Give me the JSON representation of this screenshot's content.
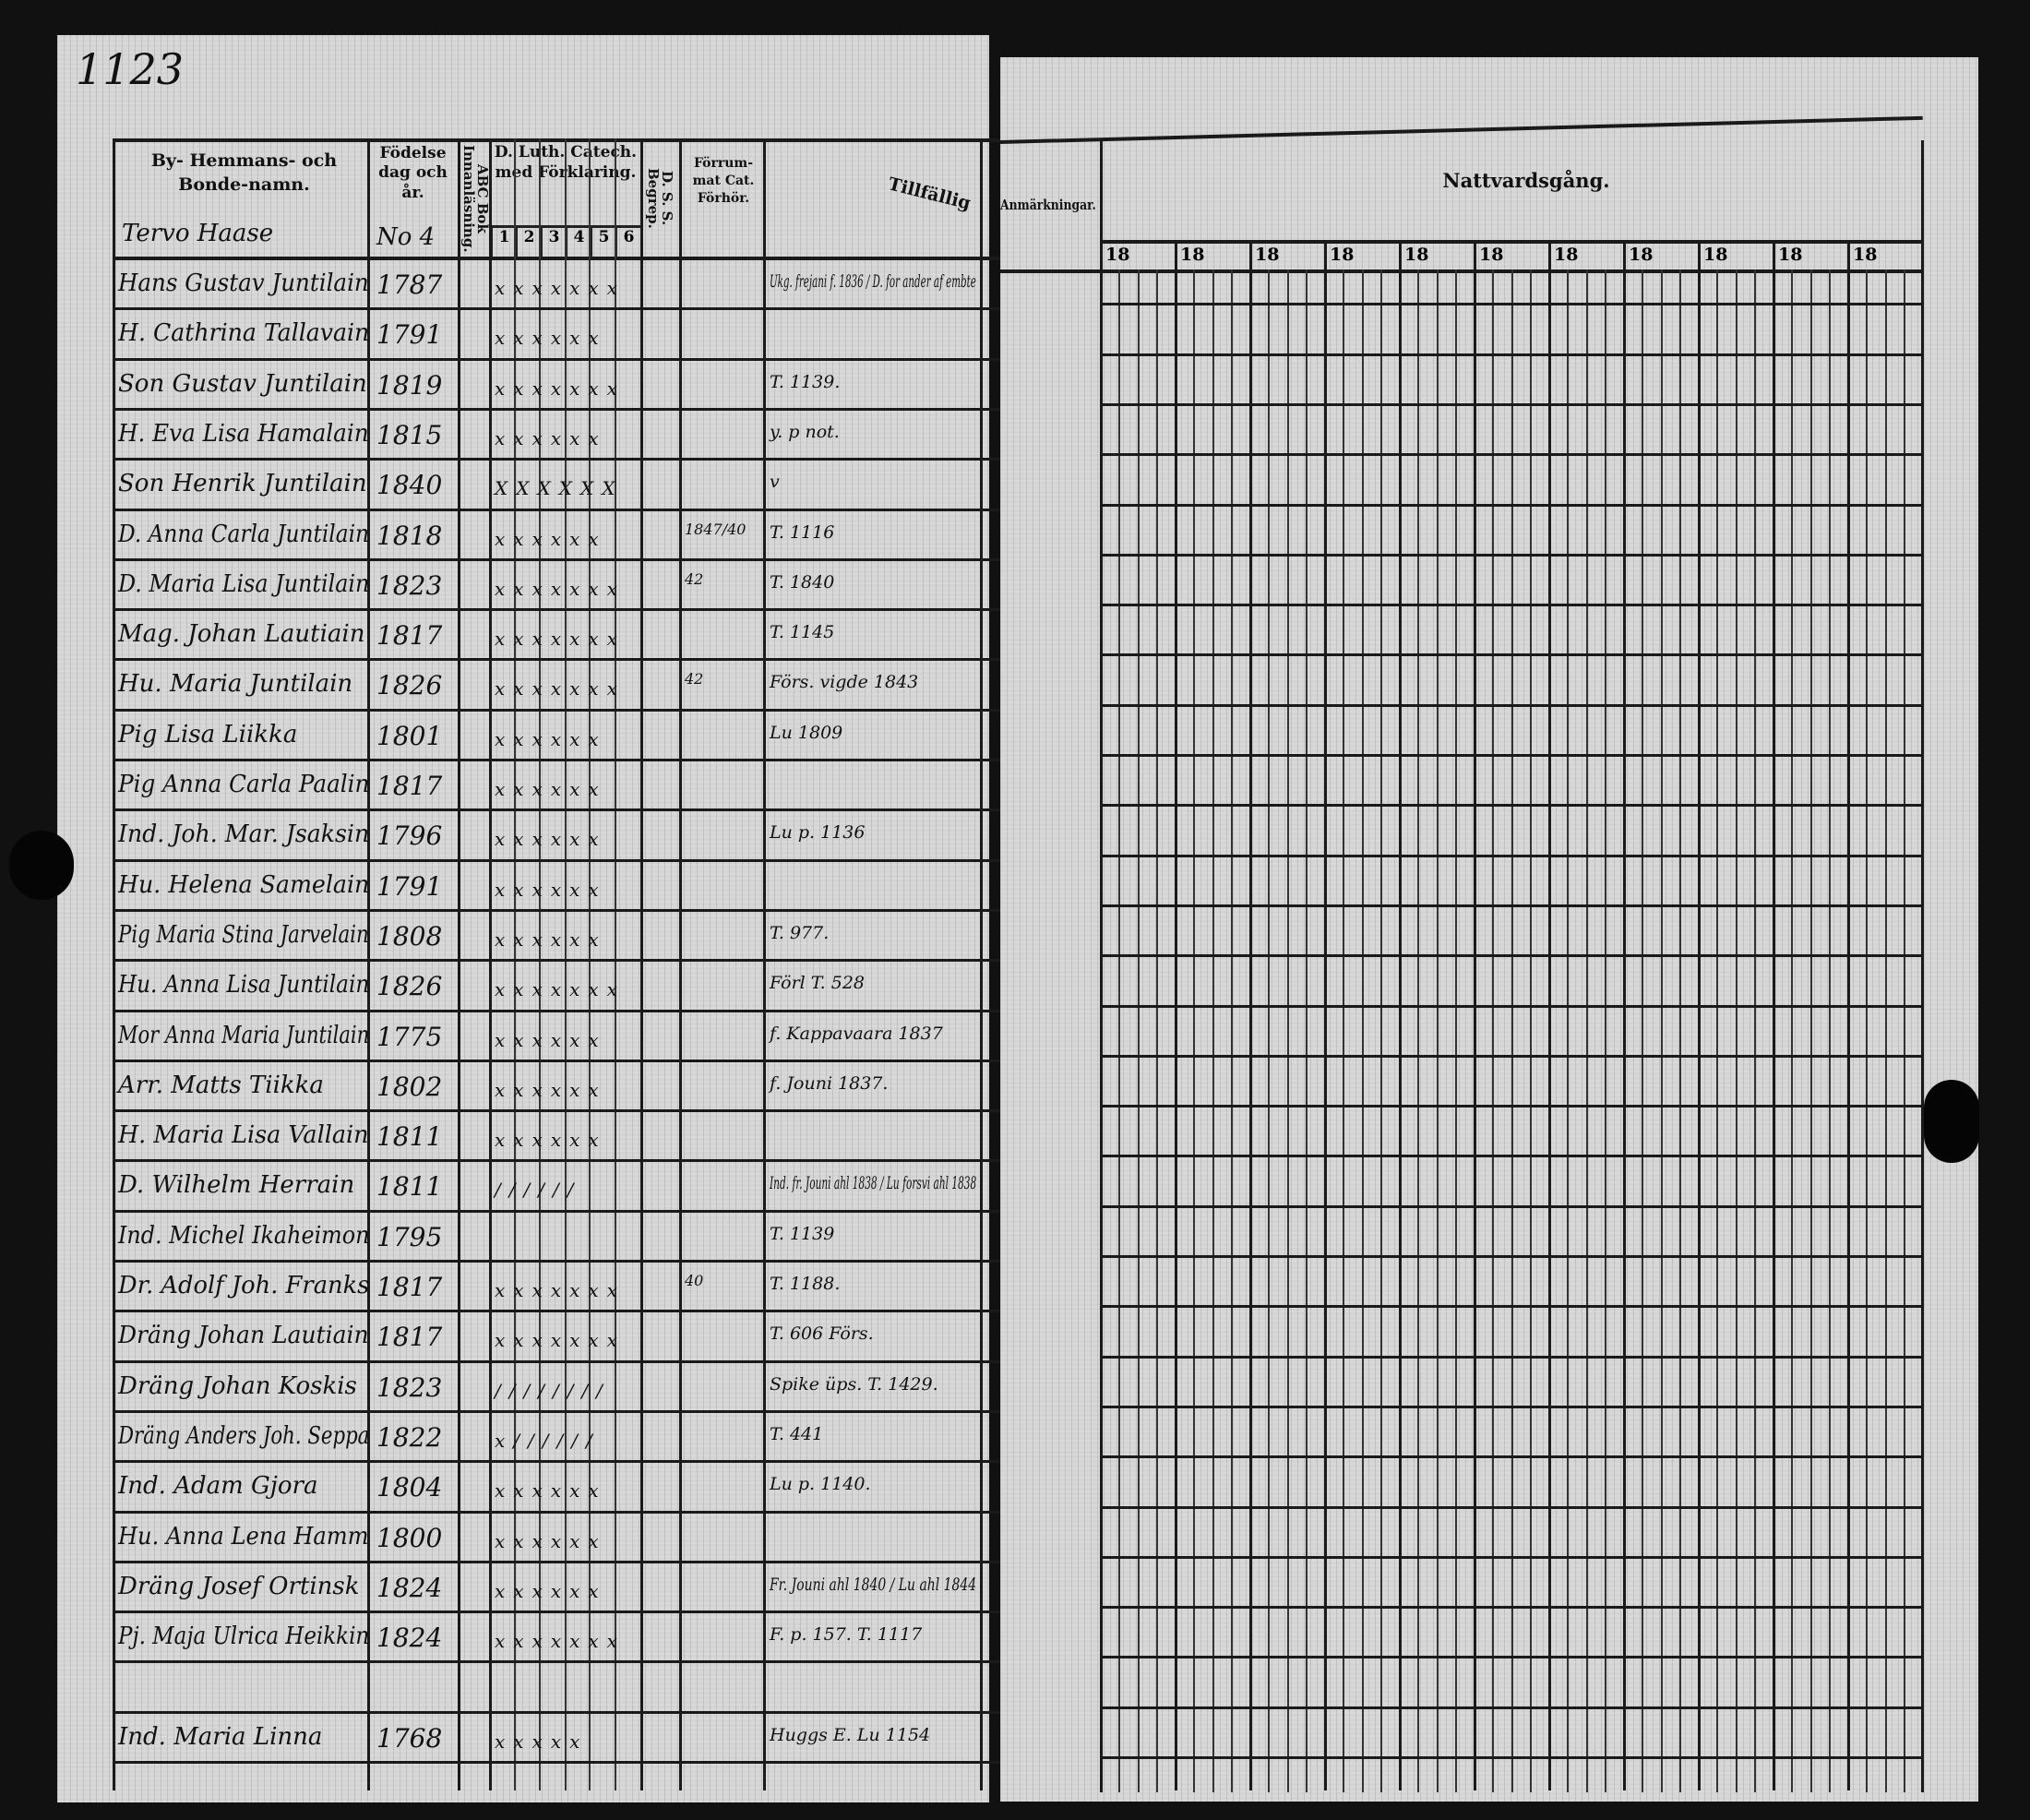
{
  "page_number": "1123",
  "left_page": {
    "headers": {
      "name": "By- Hemmans- och Bonde-namn.",
      "birth": "Födelse dag och år.",
      "abc": "ABC Bok Innanläsning.",
      "catechism": "D. Luth. Catech. med Förklaring.",
      "catechism_cols": [
        "1",
        "2",
        "3",
        "4",
        "5",
        "6"
      ],
      "dss": "D. S. S. Begrep.",
      "forrum": "Förrum- mat Cat. Förhör.",
      "tillfallig": "Tillfällig"
    },
    "farm_name": "Tervo Haase",
    "farm_no": "No 4",
    "rows": [
      {
        "name": "Hans Gustav Juntilain",
        "birth": "1787",
        "marks": "xxxxxxx",
        "note": "Ukg. frejani f. 1836 / D. for ander af embte"
      },
      {
        "name": "H. Cathrina Tallavain",
        "birth": "1791",
        "marks": "xxxxxx",
        "note": ""
      },
      {
        "name": "Son Gustav Juntilain",
        "birth": "1819",
        "marks": "xxxxxxx",
        "note": "T. 1139."
      },
      {
        "name": "H. Eva Lisa Hamalain",
        "birth": "1815",
        "marks": "xxxxxx",
        "note": "y. p not."
      },
      {
        "name": "Son Henrik Juntilain",
        "birth": "1840",
        "marks": "XXXXXX",
        "note": "v"
      },
      {
        "name": "D. Anna Carla Juntilain",
        "birth": "1818",
        "marks": "xxxxxx",
        "note": "T. 1116",
        "forrum": "1847/40"
      },
      {
        "name": "D. Maria Lisa Juntilain",
        "birth": "1823",
        "marks": "xxxxxxx",
        "note": "T. 1840",
        "forrum": "42"
      },
      {
        "name": "Mag. Johan Lautiain",
        "birth": "1817",
        "marks": "xxxxxxx",
        "note": "T. 1145"
      },
      {
        "name": "Hu. Maria Juntilain",
        "birth": "1826",
        "marks": "xxxxxxx",
        "note": "Förs. vigde 1843",
        "forrum": "42"
      },
      {
        "name": "Pig Lisa Liikka",
        "birth": "1801",
        "marks": "xxxxxx",
        "note": "Lu 1809"
      },
      {
        "name": "Pig Anna Carla Paalin",
        "birth": "1817",
        "marks": "xxxxxx",
        "note": ""
      },
      {
        "name": "Ind. Joh. Mar. Jsaksin",
        "birth": "1796",
        "marks": "xxxxxx",
        "note": "Lu p. 1136"
      },
      {
        "name": "Hu. Helena Samelain",
        "birth": "1791",
        "marks": "xxxxxx",
        "note": ""
      },
      {
        "name": "Pig Maria Stina Jarvelain",
        "birth": "1808",
        "marks": "xxxxxx",
        "note": "T. 977."
      },
      {
        "name": "Hu. Anna Lisa Juntilain",
        "birth": "1826",
        "marks": "xxxxxxx",
        "note": "Förl T. 528"
      },
      {
        "name": "Mor Anna Maria Juntilain",
        "birth": "1775",
        "marks": "xxxxxx",
        "note": "f. Kappavaara 1837"
      },
      {
        "name": "Arr. Matts Tiikka",
        "birth": "1802",
        "marks": "xxxxxx",
        "note": "f. Jouni 1837."
      },
      {
        "name": "H. Maria Lisa Vallain",
        "birth": "1811",
        "marks": "xxxxxx",
        "note": ""
      },
      {
        "name": "D. Wilhelm Herrain",
        "birth": "1811",
        "marks": "//////",
        "note": "Ind. fr. Jouni ahl 1838 / Lu forsvi ahl 1838"
      },
      {
        "name": "Ind. Michel Ikaheimon",
        "birth": "1795",
        "marks": "",
        "note": "T. 1139"
      },
      {
        "name": "Dr. Adolf Joh. Franks",
        "birth": "1817",
        "marks": "xxxxxxx",
        "note": "T. 1188.",
        "forrum": "40"
      },
      {
        "name": "Dräng Johan Lautiain",
        "birth": "1817",
        "marks": "xxxxxxx",
        "note": "T. 606 Förs."
      },
      {
        "name": "Dräng Johan Koskis",
        "birth": "1823",
        "marks": "////////",
        "note": "Spike üps. T. 1429."
      },
      {
        "name": "Dräng Anders Joh. Seppa",
        "birth": "1822",
        "marks": "x//////",
        "note": "T. 441"
      },
      {
        "name": "Ind. Adam Gjora",
        "birth": "1804",
        "marks": "xxxxxx",
        "note": "Lu p. 1140."
      },
      {
        "name": "Hu. Anna Lena Hamm",
        "birth": "1800",
        "marks": "xxxxxx",
        "note": ""
      },
      {
        "name": "Dräng Josef Ortinsk",
        "birth": "1824",
        "marks": "xxxxxx",
        "note": "Fr. Jouni ahl 1840 / Lu ahl 1844"
      },
      {
        "name": "Pj. Maja Ulrica Heikkin",
        "birth": "1824",
        "marks": "xxxxxxx",
        "note": "F. p. 157.   T. 1117"
      },
      {
        "name": "",
        "birth": "",
        "marks": "",
        "note": ""
      },
      {
        "name": "Ind. Maria Linna",
        "birth": "1768",
        "marks": "xxxxx",
        "note": "Huggs E. Lu 1154"
      }
    ]
  },
  "right_page": {
    "anmarkningar": "Anmärkningar.",
    "title": "Nattvardsgång.",
    "year_prefixes": [
      "18",
      "18",
      "18",
      "18",
      "18",
      "18",
      "18",
      "18",
      "18",
      "18",
      "18"
    ]
  }
}
